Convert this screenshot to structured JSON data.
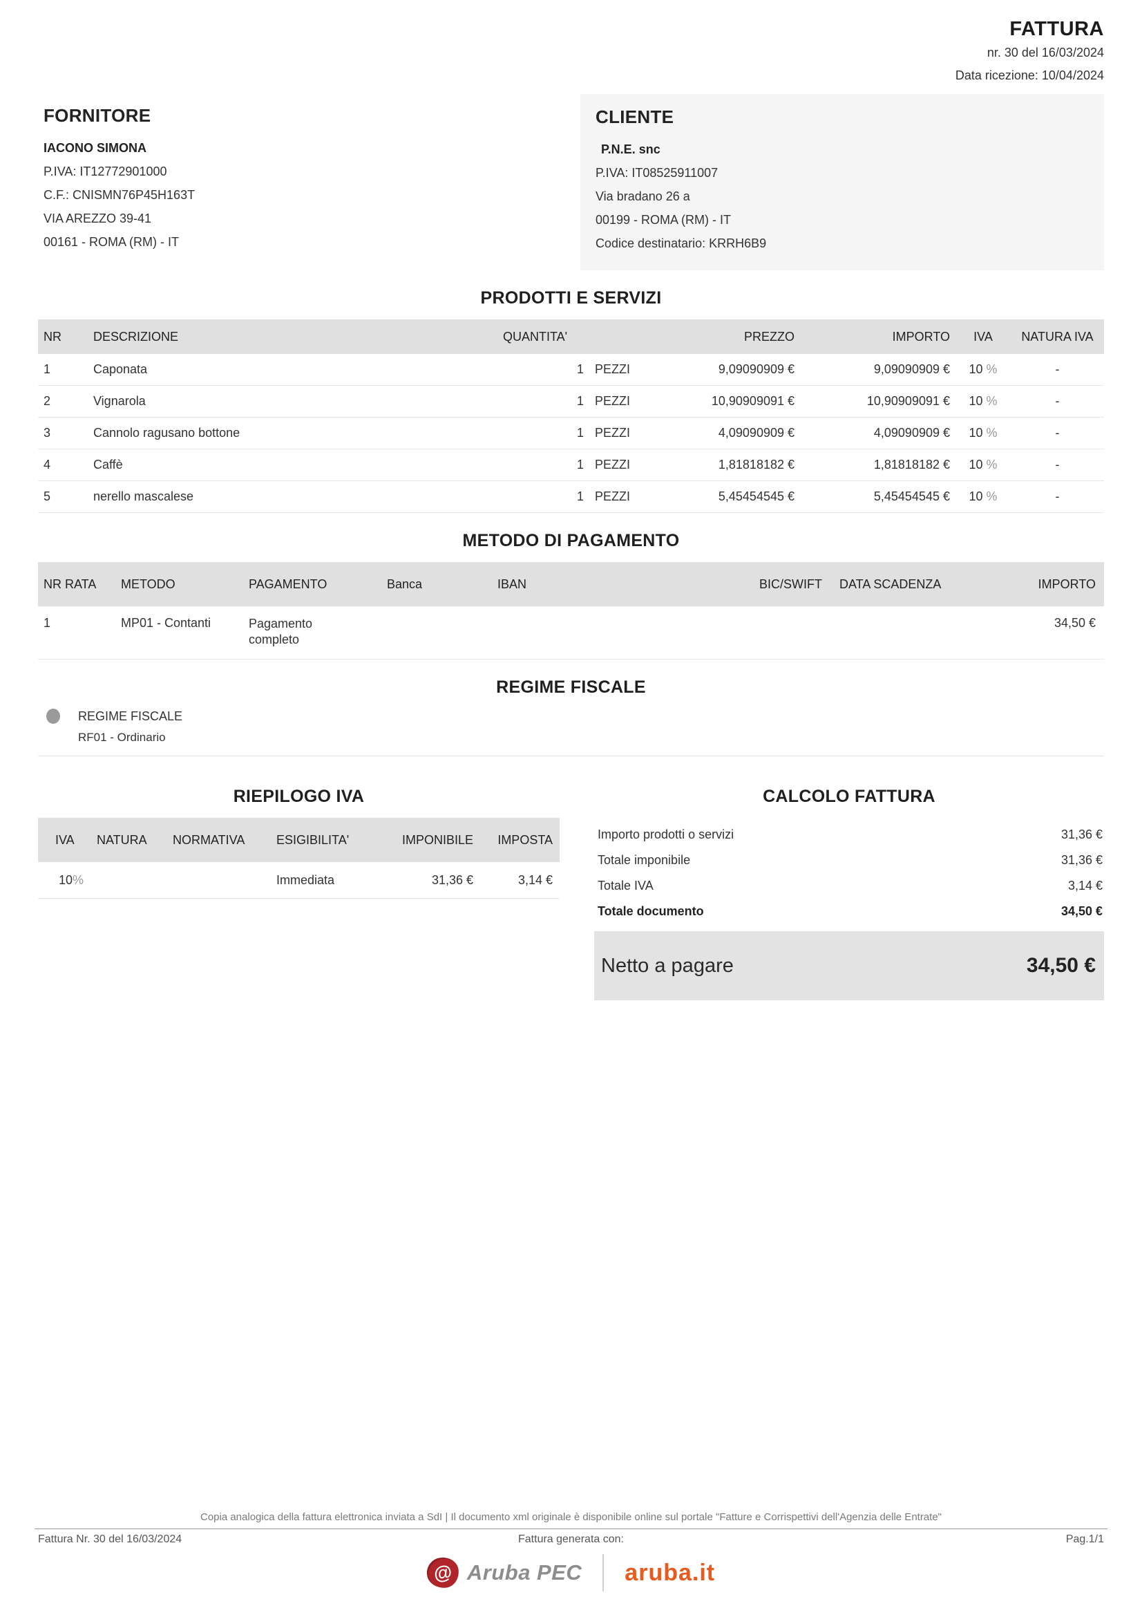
{
  "header": {
    "title": "FATTURA",
    "number_line": "nr. 30 del 16/03/2024",
    "reception_line": "Data ricezione: 10/04/2024"
  },
  "fornitore": {
    "section_title": "FORNITORE",
    "name": "IACONO SIMONA",
    "piva": "P.IVA: IT12772901000",
    "cf": "C.F.: CNISMN76P45H163T",
    "address": "VIA AREZZO 39-41",
    "city": "00161 - ROMA (RM) - IT"
  },
  "cliente": {
    "section_title": "CLIENTE",
    "name": "P.N.E. snc",
    "piva": "P.IVA: IT08525911007",
    "address": "Via  bradano 26 a",
    "city": "00199 - ROMA (RM) - IT",
    "codice_destinatario": "Codice destinatario: KRRH6B9"
  },
  "prodotti": {
    "section_title": "PRODOTTI E SERVIZI",
    "columns": [
      "NR",
      "DESCRIZIONE",
      "QUANTITA'",
      "PREZZO",
      "IMPORTO",
      "IVA",
      "NATURA IVA"
    ],
    "percent_sign": "%",
    "rows": [
      {
        "nr": "1",
        "descrizione": "Caponata",
        "quantita": "1",
        "unita": "PEZZI",
        "prezzo": "9,09090909 €",
        "importo": "9,09090909 €",
        "iva": "10",
        "natura_iva": "-"
      },
      {
        "nr": "2",
        "descrizione": "Vignarola",
        "quantita": "1",
        "unita": "PEZZI",
        "prezzo": "10,90909091 €",
        "importo": "10,90909091 €",
        "iva": "10",
        "natura_iva": "-"
      },
      {
        "nr": "3",
        "descrizione": "Cannolo ragusano bottone",
        "quantita": "1",
        "unita": "PEZZI",
        "prezzo": "4,09090909 €",
        "importo": "4,09090909 €",
        "iva": "10",
        "natura_iva": "-"
      },
      {
        "nr": "4",
        "descrizione": "Caffè",
        "quantita": "1",
        "unita": "PEZZI",
        "prezzo": "1,81818182 €",
        "importo": "1,81818182 €",
        "iva": "10",
        "natura_iva": "-"
      },
      {
        "nr": "5",
        "descrizione": "nerello mascalese",
        "quantita": "1",
        "unita": "PEZZI",
        "prezzo": "5,45454545 €",
        "importo": "5,45454545 €",
        "iva": "10",
        "natura_iva": "-"
      }
    ]
  },
  "pagamento": {
    "section_title": "METODO DI PAGAMENTO",
    "columns": [
      "NR RATA",
      "METODO",
      "PAGAMENTO",
      "Banca",
      "IBAN",
      "BIC/SWIFT",
      "DATA SCADENZA",
      "IMPORTO"
    ],
    "row": {
      "nr_rata": "1",
      "metodo": "MP01 - Contanti",
      "pagamento": "Pagamento completo",
      "banca": "",
      "iban": "",
      "bic_swift": "",
      "data_scadenza": "",
      "importo": "34,50 €"
    }
  },
  "regime": {
    "section_title": "REGIME FISCALE",
    "label": "REGIME FISCALE",
    "value": "RF01 - Ordinario"
  },
  "riepilogo": {
    "section_title": "RIEPILOGO IVA",
    "columns": [
      "IVA",
      "NATURA",
      "NORMATIVA",
      "ESIGIBILITA'",
      "IMPONIBILE",
      "IMPOSTA"
    ],
    "percent_sign": "%",
    "row": {
      "iva": "10",
      "natura": "",
      "normativa": "",
      "esigibilita": "Immediata",
      "imponibile": "31,36 €",
      "imposta": "3,14 €"
    }
  },
  "calcolo": {
    "section_title": "CALCOLO FATTURA",
    "rows": [
      {
        "label": "Importo prodotti o servizi",
        "value": "31,36 €"
      },
      {
        "label": "Totale imponibile",
        "value": "31,36 €"
      },
      {
        "label": "Totale IVA",
        "value": "3,14 €"
      },
      {
        "label": "Totale documento",
        "value": "34,50 €"
      }
    ],
    "netto_label": "Netto a pagare",
    "netto_value": "34,50 €"
  },
  "footer": {
    "disclaimer": "Copia analogica della fattura elettronica inviata a SdI | Il documento xml originale è disponibile online sul portale \"Fatture e Corrispettivi dell'Agenzia delle Entrate\"",
    "left": "Fattura Nr. 30 del 16/03/2024",
    "center": "Fattura generata con:",
    "right": "Pag.1/1",
    "logo_at_symbol": "@",
    "logo_aruba_pec": "Aruba PEC",
    "logo_aruba_it": "aruba.it"
  },
  "colors": {
    "table_header_bg": "#e0e0e0",
    "client_box_bg": "#f5f5f5",
    "netto_box_bg": "#e3e3e3",
    "aruba_red": "#b0252a",
    "aruba_gray": "#8d8d8d",
    "aruba_orange": "#e95a1e"
  }
}
